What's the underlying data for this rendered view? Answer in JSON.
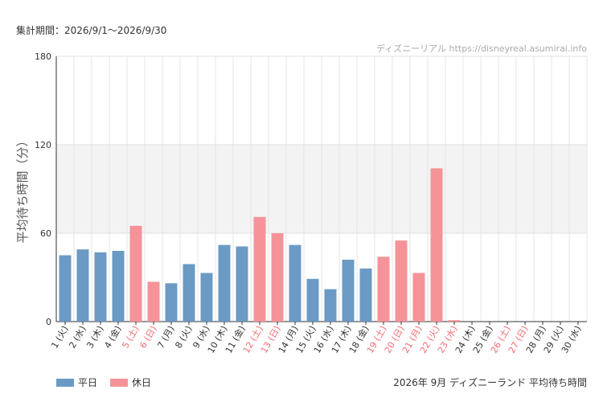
{
  "header": {
    "period": "集計期間：2026/9/1～2026/9/30",
    "credit": "ディズニーリアル https://disneyreal.asumirai.info"
  },
  "footer": {
    "title": "2026年 9月 ディズニーランド 平均待ち時間"
  },
  "legend": {
    "items": [
      {
        "label": "平日",
        "color": "#6b9ac4"
      },
      {
        "label": "休日",
        "color": "#f59398"
      }
    ]
  },
  "colors": {
    "weekday": "#6b9ac4",
    "holiday": "#f59398",
    "holiday_label": "#f26c73",
    "band": "#f3f3f3"
  },
  "chart_data": {
    "type": "bar",
    "ylabel": "平均待ち時間（分）",
    "ylim": [
      0,
      180
    ],
    "yticks": [
      0,
      60,
      120,
      180
    ],
    "highlight_band": [
      60,
      120
    ],
    "grid": true,
    "legend_position": "bottom-left",
    "categories": [
      "1 (火)",
      "2 (水)",
      "3 (木)",
      "4 (金)",
      "5 (土)",
      "6 (日)",
      "7 (月)",
      "8 (火)",
      "9 (水)",
      "10 (木)",
      "11 (金)",
      "12 (土)",
      "13 (日)",
      "14 (月)",
      "15 (火)",
      "16 (水)",
      "17 (木)",
      "18 (金)",
      "19 (土)",
      "20 (日)",
      "21 (月)",
      "22 (火)",
      "23 (水)",
      "24 (木)",
      "25 (金)",
      "26 (土)",
      "27 (日)",
      "28 (月)",
      "29 (火)",
      "30 (水)"
    ],
    "holiday": [
      false,
      false,
      false,
      false,
      true,
      true,
      false,
      false,
      false,
      false,
      false,
      true,
      true,
      false,
      false,
      false,
      false,
      false,
      true,
      true,
      true,
      true,
      true,
      false,
      false,
      true,
      true,
      false,
      false,
      false
    ],
    "series": [
      {
        "name": "平均待ち時間",
        "values": [
          45,
          49,
          47,
          48,
          65,
          27,
          26,
          39,
          33,
          52,
          51,
          71,
          60,
          52,
          29,
          22,
          42,
          36,
          44,
          55,
          33,
          104,
          1,
          0,
          0,
          0,
          0,
          0,
          0,
          0
        ]
      }
    ]
  }
}
